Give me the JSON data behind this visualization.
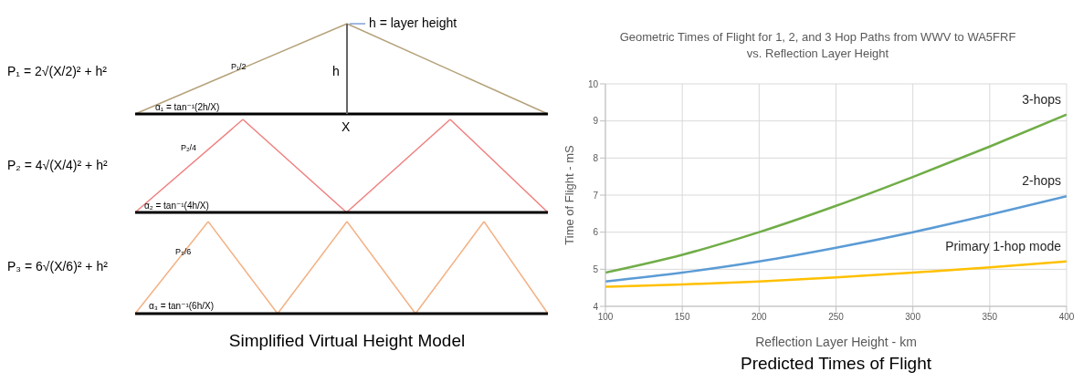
{
  "chart_data": [
    {
      "type": "other",
      "title": "Simplified Virtual Height Model",
      "annotations": [
        "P₁ = 2√(X/2)² + h²",
        "P₂ = 4√(X/4)² + h²",
        "P₃ = 6√(X/6)² + h²",
        "h = layer height",
        "h",
        "X",
        "P₁/2",
        "α₁ = tan⁻¹(2h/X)",
        "P₂/4",
        "α₂ = tan⁻¹(4h/X)",
        "P₃/6",
        "α₃ = tan⁻¹(6h/X)"
      ]
    },
    {
      "type": "line",
      "title": "Geometric Times of Flight for 1, 2, and 3 Hop Paths from WWV to WA5FRF vs. Reflection Layer Height",
      "xlabel": "Reflection Layer Height - km",
      "ylabel": "Time of Flight - mS",
      "annotations": [
        "Predicted Times of Flight"
      ],
      "x": [
        100,
        150,
        200,
        250,
        300,
        350,
        400
      ],
      "series": [
        {
          "name": "3-hops",
          "color": "#70ad47",
          "values": [
            4.91,
            5.39,
            6.0,
            6.71,
            7.49,
            8.31,
            9.17
          ]
        },
        {
          "name": "2-hops",
          "color": "#5b9bd5",
          "values": [
            4.67,
            4.91,
            5.21,
            5.58,
            6.0,
            6.47,
            6.97
          ]
        },
        {
          "name": "Primary 1-hop mode",
          "color": "#ffc000",
          "values": [
            4.53,
            4.59,
            4.67,
            4.78,
            4.91,
            5.05,
            5.21
          ]
        }
      ],
      "xlim": [
        100,
        400
      ],
      "xticks": [
        100,
        150,
        200,
        250,
        300,
        350,
        400
      ],
      "ylim": [
        4,
        10
      ],
      "yticks": [
        4,
        5,
        6,
        7,
        8,
        9,
        10
      ],
      "grid": true,
      "marker": "none",
      "line_style": "solid",
      "legend": false
    }
  ]
}
